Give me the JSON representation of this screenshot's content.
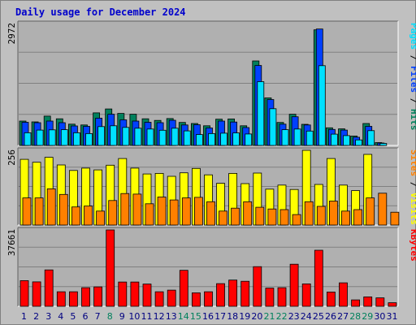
{
  "title": "Daily usage for December 2024",
  "colors": {
    "background": "#c0c0c0",
    "plot_bg": "#b0b0b0",
    "title": "#0000cc",
    "hits": "#00805c",
    "files": "#0040ff",
    "pages": "#00e0ff",
    "visits": "#ffff00",
    "sites": "#ff8000",
    "kbytes": "#ff0000",
    "weekend_label": "#00805c",
    "weekday_label": "#000080"
  },
  "chart_data": [
    {
      "type": "bar",
      "panel": "hits",
      "ymax_label": "2972",
      "axis_label_parts": [
        {
          "text": "Pages",
          "color_key": "pages"
        },
        {
          "text": " / ",
          "color_key": "dark"
        },
        {
          "text": "Files",
          "color_key": "files"
        },
        {
          "text": " / ",
          "color_key": "dark"
        },
        {
          "text": "Hits",
          "color_key": "hits"
        }
      ],
      "ylim": [
        0,
        2972
      ],
      "x": [
        1,
        2,
        3,
        4,
        5,
        6,
        7,
        8,
        9,
        10,
        11,
        12,
        13,
        14,
        15,
        16,
        17,
        18,
        19,
        20,
        21,
        22,
        23,
        24,
        25,
        26,
        27,
        28,
        29,
        30,
        31
      ],
      "series": [
        {
          "name": "Hits",
          "color_key": "hits",
          "values": [
            595,
            575,
            715,
            650,
            520,
            500,
            795,
            890,
            780,
            760,
            650,
            610,
            655,
            560,
            535,
            480,
            640,
            645,
            480,
            2060,
            1160,
            560,
            760,
            515,
            2820,
            430,
            405,
            230,
            535,
            70,
            0
          ]
        },
        {
          "name": "Files",
          "color_key": "files",
          "values": [
            565,
            555,
            595,
            555,
            475,
            465,
            665,
            760,
            625,
            595,
            565,
            555,
            615,
            500,
            505,
            425,
            595,
            570,
            435,
            1950,
            1120,
            520,
            700,
            500,
            2840,
            390,
            375,
            200,
            465,
            60,
            0
          ]
        },
        {
          "name": "Pages",
          "color_key": "pages",
          "values": [
            310,
            375,
            380,
            385,
            310,
            290,
            460,
            480,
            440,
            420,
            400,
            370,
            420,
            355,
            265,
            290,
            300,
            305,
            280,
            1555,
            895,
            385,
            400,
            350,
            1945,
            275,
            240,
            135,
            360,
            50,
            0
          ]
        }
      ]
    },
    {
      "type": "bar",
      "panel": "visits",
      "ymax_label": "256",
      "axis_label_parts": [
        {
          "text": "Sites",
          "color_key": "sites"
        },
        {
          "text": " / ",
          "color_key": "dark"
        },
        {
          "text": "Visits",
          "color_key": "visits"
        }
      ],
      "ylim": [
        0,
        256
      ],
      "x": [
        1,
        2,
        3,
        4,
        5,
        6,
        7,
        8,
        9,
        10,
        11,
        12,
        13,
        14,
        15,
        16,
        17,
        18,
        19,
        20,
        21,
        22,
        23,
        24,
        25,
        26,
        27,
        28,
        29,
        30,
        31
      ],
      "series": [
        {
          "name": "Visits",
          "color_key": "visits",
          "values": [
            225,
            215,
            232,
            206,
            187,
            195,
            189,
            205,
            228,
            195,
            175,
            177,
            167,
            179,
            194,
            172,
            143,
            177,
            142,
            178,
            123,
            137,
            122,
            256,
            139,
            228,
            137,
            118,
            242,
            0,
            0
          ]
        },
        {
          "name": "Sites",
          "color_key": "sites",
          "values": [
            93,
            93,
            124,
            105,
            62,
            65,
            48,
            84,
            108,
            106,
            73,
            96,
            86,
            93,
            95,
            80,
            48,
            58,
            80,
            61,
            55,
            53,
            36,
            80,
            64,
            82,
            48,
            53,
            93,
            109,
            44
          ]
        }
      ]
    },
    {
      "type": "bar",
      "panel": "kbytes",
      "ymax_label": "37661",
      "axis_label_parts": [
        {
          "text": "KBytes",
          "color_key": "kbytes"
        }
      ],
      "ylim": [
        0,
        37661
      ],
      "x": [
        1,
        2,
        3,
        4,
        5,
        6,
        7,
        8,
        9,
        10,
        11,
        12,
        13,
        14,
        15,
        16,
        17,
        18,
        19,
        20,
        21,
        22,
        23,
        24,
        25,
        26,
        27,
        28,
        29,
        30,
        31
      ],
      "series": [
        {
          "name": "KBytes",
          "color_key": "kbytes",
          "values": [
            12660,
            12060,
            17960,
            7160,
            7160,
            9160,
            9560,
            37660,
            11960,
            11960,
            10960,
            7160,
            7960,
            17760,
            6660,
            7160,
            11160,
            12960,
            12360,
            19560,
            8960,
            9160,
            20760,
            11060,
            27660,
            7060,
            11560,
            3160,
            4660,
            4160,
            1760
          ]
        }
      ]
    }
  ],
  "day_labels": [
    {
      "text": "1",
      "weekend": false
    },
    {
      "text": "2",
      "weekend": false
    },
    {
      "text": "3",
      "weekend": false
    },
    {
      "text": "4",
      "weekend": false
    },
    {
      "text": "5",
      "weekend": false
    },
    {
      "text": "6",
      "weekend": false
    },
    {
      "text": "7",
      "weekend": false
    },
    {
      "text": "8",
      "weekend": true
    },
    {
      "text": "9",
      "weekend": false
    },
    {
      "text": "10",
      "weekend": false
    },
    {
      "text": "11",
      "weekend": false
    },
    {
      "text": "12",
      "weekend": false
    },
    {
      "text": "13",
      "weekend": false
    },
    {
      "text": "14",
      "weekend": true
    },
    {
      "text": "15",
      "weekend": true
    },
    {
      "text": "16",
      "weekend": false
    },
    {
      "text": "17",
      "weekend": false
    },
    {
      "text": "18",
      "weekend": false
    },
    {
      "text": "19",
      "weekend": false
    },
    {
      "text": "20",
      "weekend": false
    },
    {
      "text": "21",
      "weekend": true
    },
    {
      "text": "22",
      "weekend": true
    },
    {
      "text": "23",
      "weekend": false
    },
    {
      "text": "24",
      "weekend": false
    },
    {
      "text": "25",
      "weekend": false
    },
    {
      "text": "26",
      "weekend": false
    },
    {
      "text": "27",
      "weekend": false
    },
    {
      "text": "28",
      "weekend": true
    },
    {
      "text": "29",
      "weekend": true
    },
    {
      "text": "30",
      "weekend": false
    },
    {
      "text": "31",
      "weekend": false
    }
  ]
}
